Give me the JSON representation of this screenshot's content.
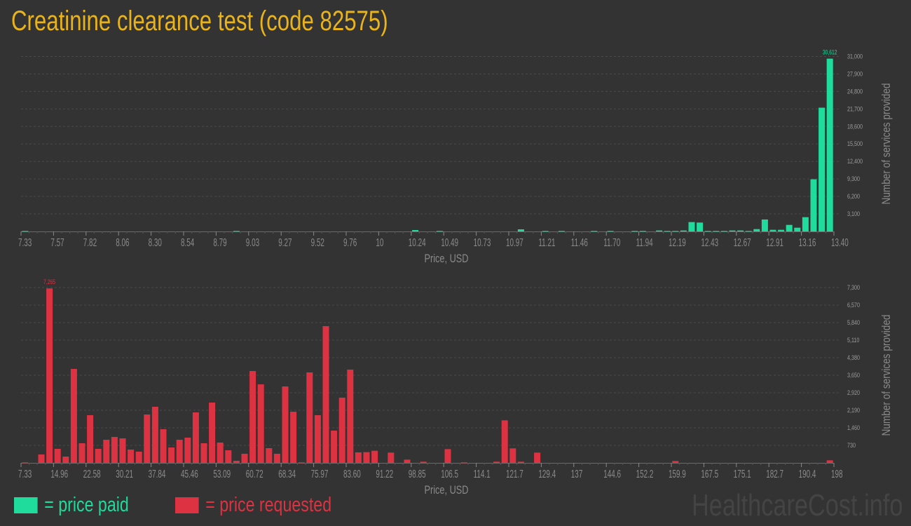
{
  "title": "Creatinine clearance test (code 82575)",
  "colors": {
    "paid": "#1fdb9c",
    "requested": "#dd3242",
    "title": "#e9b31b",
    "background": "#333333"
  },
  "legend": {
    "paid_label": "= price paid",
    "requested_label": "= price requested"
  },
  "brand": "HealthcareCost.info",
  "chart_data": [
    {
      "type": "bar",
      "series": [
        {
          "name": "price paid",
          "values": [
            80,
            0,
            0,
            0,
            0,
            0,
            0,
            0,
            0,
            0,
            0,
            0,
            0,
            0,
            0,
            0,
            0,
            0,
            0,
            0,
            0,
            0,
            0,
            0,
            0,
            0,
            80,
            0,
            0,
            0,
            0,
            0,
            0,
            0,
            0,
            0,
            0,
            0,
            0,
            0,
            0,
            0,
            0,
            0,
            0,
            0,
            0,
            0,
            250,
            0,
            0,
            80,
            0,
            0,
            0,
            0,
            0,
            0,
            0,
            0,
            0,
            370,
            0,
            0,
            80,
            0,
            80,
            0,
            0,
            0,
            80,
            0,
            80,
            0,
            0,
            80,
            80,
            0,
            170,
            80,
            80,
            170,
            1658,
            1575,
            80,
            80,
            80,
            170,
            170,
            80,
            415,
            2114,
            290,
            290,
            1160,
            663,
            2528,
            9241,
            21925,
            30612
          ]
        }
      ],
      "x_range": [
        7.33,
        13.4
      ],
      "x_tick_labels": [
        "7.33",
        "7.57",
        "7.82",
        "8.06",
        "8.30",
        "8.54",
        "8.79",
        "9.03",
        "9.27",
        "9.52",
        "9.76",
        "10",
        "10.24",
        "10.49",
        "10.73",
        "10.97",
        "11.21",
        "11.46",
        "11.70",
        "11.94",
        "12.19",
        "12.43",
        "12.67",
        "12.91",
        "13.16",
        "13.40"
      ],
      "y_tick_labels": [
        "3,100",
        "6,200",
        "9,300",
        "12,400",
        "15,500",
        "18,600",
        "21,700",
        "24,800",
        "27,900",
        "31,000"
      ],
      "ylim": [
        0,
        31000
      ],
      "max_label": "30,612",
      "xlabel": "Price, USD",
      "ylabel": "Number of services provided",
      "grid": true
    },
    {
      "type": "bar",
      "series": [
        {
          "name": "price requested",
          "values": [
            20,
            0,
            350,
            7265,
            584,
            263,
            3913,
            818,
            1986,
            584,
            964,
            1080,
            1022,
            555,
            467,
            2015,
            2336,
            1402,
            642,
            964,
            1051,
            2102,
            818,
            2511,
            847,
            526,
            88,
            380,
            3825,
            3270,
            613,
            380,
            3183,
            2132,
            20,
            3767,
            1986,
            5694,
            1343,
            2716,
            3884,
            438,
            448,
            505,
            0,
            428,
            0,
            136,
            0,
            50,
            0,
            0,
            574,
            0,
            20,
            0,
            0,
            0,
            50,
            1772,
            604,
            50,
            0,
            428,
            0,
            0,
            0,
            0,
            0,
            0,
            0,
            0,
            0,
            0,
            0,
            0,
            0,
            0,
            0,
            0,
            78,
            0,
            0,
            0,
            0,
            0,
            0,
            0,
            0,
            0,
            0,
            0,
            0,
            0,
            0,
            0,
            0,
            0,
            0,
            107
          ]
        }
      ],
      "x_range": [
        7.33,
        198
      ],
      "x_tick_labels": [
        "7.33",
        "14.96",
        "22.58",
        "30.21",
        "37.84",
        "45.46",
        "53.09",
        "60.72",
        "68.34",
        "75.97",
        "83.60",
        "91.22",
        "98.85",
        "106.5",
        "114.1",
        "121.7",
        "129.4",
        "137",
        "144.6",
        "152.2",
        "159.9",
        "167.5",
        "175.1",
        "182.7",
        "190.4",
        "198"
      ],
      "y_tick_labels": [
        "730",
        "1,460",
        "2,190",
        "2,920",
        "3,650",
        "4,380",
        "5,110",
        "5,840",
        "6,570",
        "7,300"
      ],
      "ylim": [
        0,
        7300
      ],
      "max_label": "7,265",
      "xlabel": "Price, USD",
      "ylabel": "Number of services provided",
      "grid": true
    }
  ]
}
